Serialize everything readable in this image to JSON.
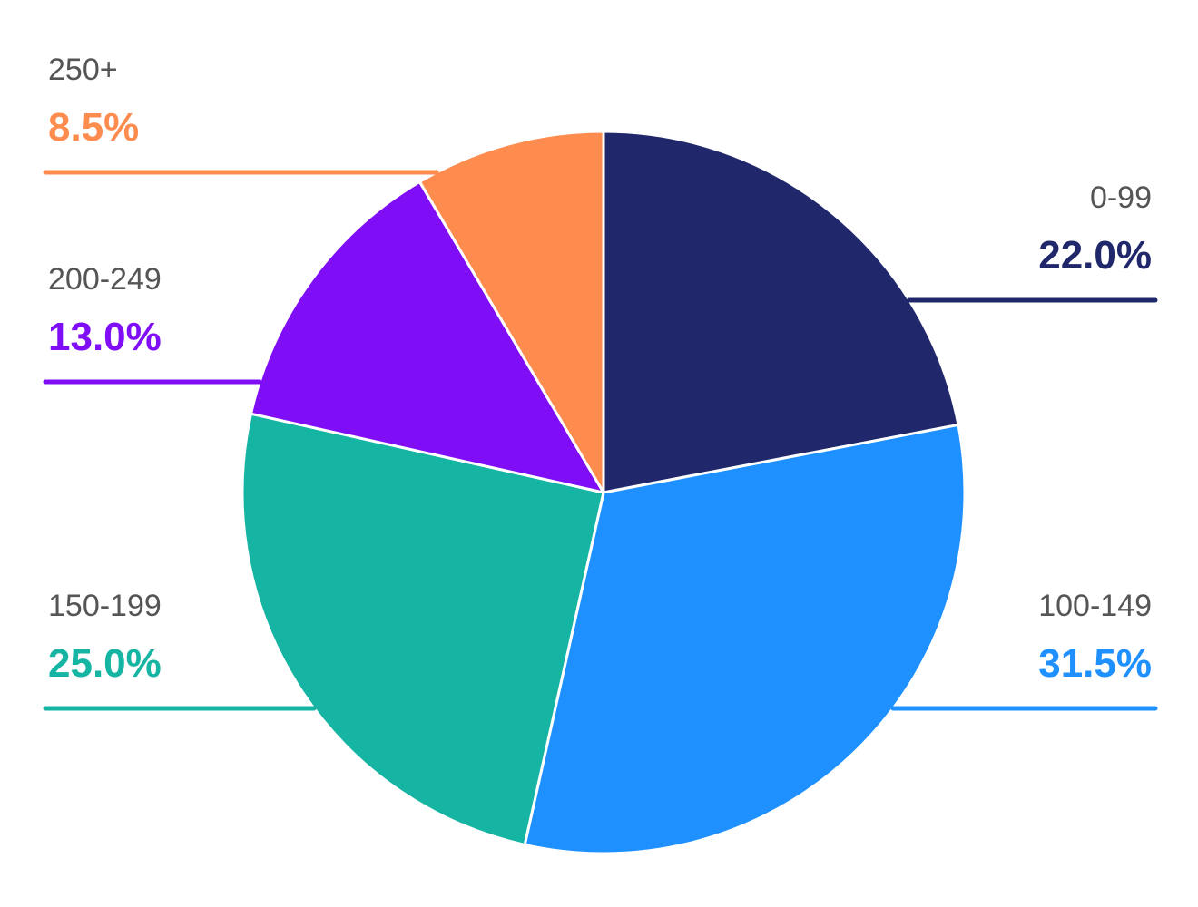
{
  "chart_data": {
    "type": "pie",
    "title": "",
    "unit": "%",
    "start_angle_deg": 0,
    "direction": "clockwise",
    "slice_border_color": "#ffffff",
    "slices": [
      {
        "label": "0-99",
        "value": 22.0,
        "value_label": "22.0%",
        "color": "#20286B"
      },
      {
        "label": "100-149",
        "value": 31.5,
        "value_label": "31.5%",
        "color": "#1E90FF"
      },
      {
        "label": "150-199",
        "value": 25.0,
        "value_label": "25.0%",
        "color": "#16B5A3"
      },
      {
        "label": "200-249",
        "value": 13.0,
        "value_label": "13.0%",
        "color": "#7F0DF5"
      },
      {
        "label": "250+",
        "value": 8.5,
        "value_label": "8.5%",
        "color": "#FF8C4F"
      }
    ],
    "grid": false,
    "legend": "none"
  }
}
